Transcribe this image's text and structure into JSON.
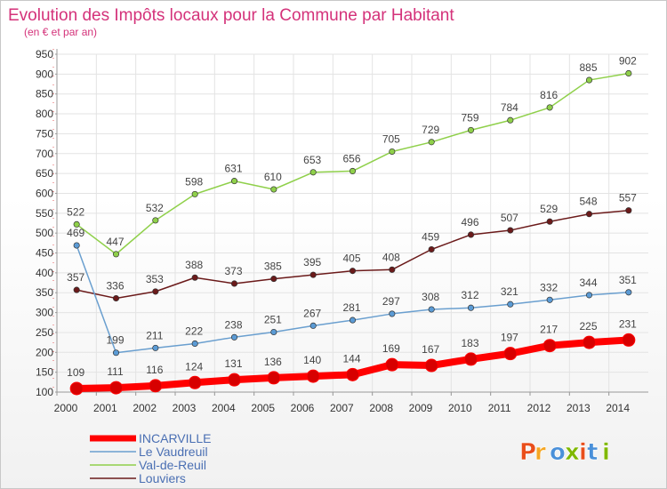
{
  "header": {
    "title": "Evolution des Impôts locaux pour la Commune par Habitant",
    "subtitle": "(en € et par an)"
  },
  "logo": {
    "text": "Proxiti",
    "colors": [
      "#e94e1b",
      "#f5a623",
      "#4a90d9",
      "#7fb800",
      "#e94e1b",
      "#4a90d9",
      "#7fb800"
    ]
  },
  "chart_data": {
    "type": "line",
    "title": "Evolution des Impôts locaux pour la Commune par Habitant",
    "subtitle": "(en € et par an)",
    "xlabel": "",
    "ylabel": "",
    "x": [
      "2000",
      "2001",
      "2002",
      "2003",
      "2004",
      "2005",
      "2006",
      "2007",
      "2008",
      "2009",
      "2010",
      "2011",
      "2012",
      "2013",
      "2014"
    ],
    "ylim": [
      100,
      950
    ],
    "yticks": [
      100,
      150,
      200,
      250,
      300,
      350,
      400,
      450,
      500,
      550,
      600,
      650,
      700,
      750,
      800,
      850,
      900,
      950
    ],
    "grid": true,
    "legend_position": "bottom-left",
    "series": [
      {
        "name": "Val-de-Reuil",
        "color": "#8fd04a",
        "stroke": "#8fd04a",
        "width": 1.5,
        "values": [
          522,
          447,
          532,
          598,
          631,
          610,
          653,
          656,
          705,
          729,
          759,
          784,
          816,
          885,
          902
        ]
      },
      {
        "name": "Louviers",
        "color": "#6b1a1a",
        "stroke": "#6b1a1a",
        "width": 1.5,
        "values": [
          357,
          336,
          353,
          388,
          373,
          385,
          395,
          405,
          408,
          459,
          496,
          507,
          529,
          548,
          557
        ]
      },
      {
        "name": "Le Vaudreuil",
        "color": "#5b9bd5",
        "stroke": "#6a9fcf",
        "width": 1.5,
        "values": [
          469,
          199,
          211,
          222,
          238,
          251,
          267,
          281,
          297,
          308,
          312,
          321,
          332,
          344,
          351
        ]
      },
      {
        "name": "INCARVILLE",
        "color": "#ff0000",
        "stroke": "#ff0000",
        "width": 8,
        "values": [
          109,
          111,
          116,
          124,
          131,
          136,
          140,
          144,
          169,
          167,
          183,
          197,
          217,
          225,
          231
        ]
      }
    ],
    "legend_order": [
      "INCARVILLE",
      "Le Vaudreuil",
      "Val-de-Reuil",
      "Louviers"
    ]
  }
}
